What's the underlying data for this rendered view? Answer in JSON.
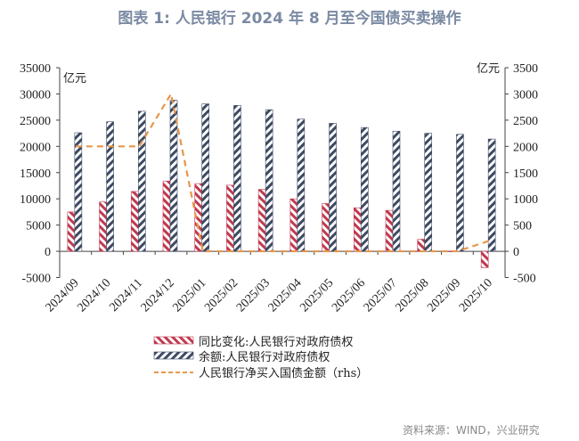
{
  "title": "图表 1:  人民银行 2024 年 8 月至今国债买卖操作",
  "source": "资料来源：WIND，兴业研究",
  "colors": {
    "red": "#c0394f",
    "blue": "#3e4a63",
    "orange": "#e8964a",
    "title": "#7b8aa3"
  },
  "chart_data": {
    "type": "bar",
    "title": "人民银行 2024 年 8 月至今国债买卖操作",
    "categories": [
      "2024/09",
      "2024/10",
      "2024/11",
      "2024/12",
      "2025/01",
      "2025/02",
      "2025/03",
      "2025/04",
      "2025/05",
      "2025/06",
      "2025/07",
      "2025/08",
      "2025/09",
      "2025/10"
    ],
    "ylabel": "亿元",
    "ylabel_right": "亿元",
    "ylim": [
      -5000,
      35000
    ],
    "yticks": [
      -5000,
      0,
      5000,
      10000,
      15000,
      20000,
      25000,
      30000,
      35000
    ],
    "ylim_right": [
      -500,
      3500
    ],
    "yticks_right": [
      -500,
      0,
      500,
      1000,
      1500,
      2000,
      2500,
      3000,
      3500
    ],
    "legend_position": "bottom",
    "series": [
      {
        "name": "同比变化:人民银行对政府债权",
        "type": "bar",
        "axis": "left",
        "values": [
          7500,
          9400,
          11400,
          13400,
          12900,
          12600,
          11800,
          10000,
          9100,
          8300,
          7800,
          2300,
          -100,
          -3100
        ]
      },
      {
        "name": "余额:人民银行对政府债权",
        "type": "bar",
        "axis": "left",
        "values": [
          22600,
          24700,
          26700,
          28800,
          28100,
          27800,
          27000,
          25200,
          24400,
          23600,
          22900,
          22500,
          22300,
          21400
        ]
      },
      {
        "name": "人民银行净买入国债金额（rhs）",
        "type": "line",
        "axis": "right",
        "values": [
          2000,
          2000,
          2000,
          3000,
          0,
          0,
          0,
          0,
          0,
          0,
          0,
          0,
          0,
          200
        ]
      }
    ]
  }
}
